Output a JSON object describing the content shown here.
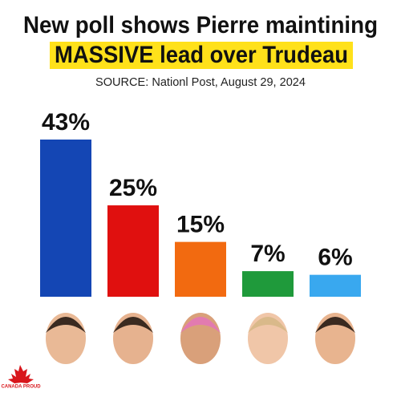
{
  "chart_data": {
    "type": "bar",
    "title": [
      "New poll shows Pierre maintining",
      "MASSIVE lead over Trudeau"
    ],
    "subtitle": "SOURCE: Nationl Post, August 29, 2024",
    "categories": [
      null,
      null,
      null,
      null,
      null
    ],
    "values": [
      43,
      25,
      15,
      7,
      6
    ],
    "value_labels": [
      "43%",
      "25%",
      "15%",
      "7%",
      "6%"
    ],
    "colors": [
      "#1446b4",
      "#e0100f",
      "#f26a10",
      "#1f9a3b",
      "#39a8ef"
    ],
    "highlight_color": "#ffe11a",
    "logo_text": "CANADA PROUD"
  }
}
